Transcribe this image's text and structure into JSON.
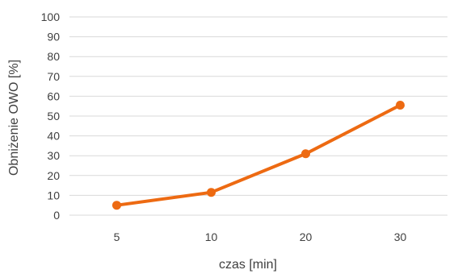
{
  "chart_data": {
    "type": "line",
    "categories": [
      "5",
      "10",
      "20",
      "30"
    ],
    "series": [
      {
        "values": [
          5,
          11.5,
          31,
          55.5
        ],
        "color": "#ED6A12"
      }
    ],
    "xlabel": "czas [min]",
    "ylabel": "Obniżenie OWO [%]",
    "ylim": [
      0,
      100
    ],
    "yticks": [
      0,
      10,
      20,
      30,
      40,
      50,
      60,
      70,
      80,
      90,
      100
    ],
    "grid": true,
    "gridline_color": "#D9D9D9"
  }
}
